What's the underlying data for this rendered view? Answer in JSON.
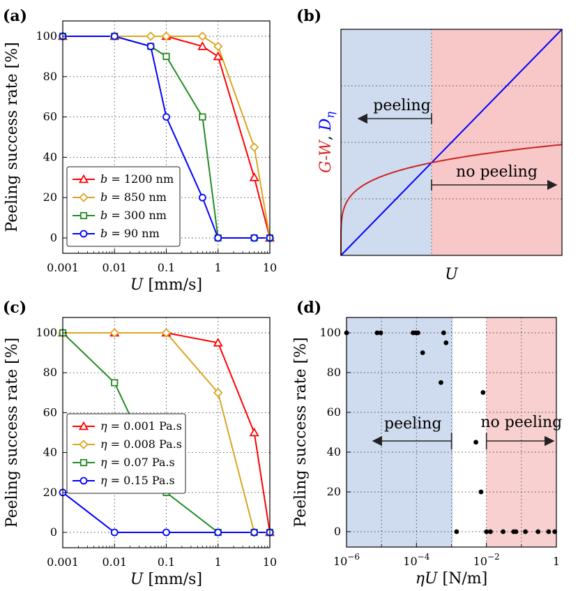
{
  "figure": {
    "panels": [
      {
        "id": "a",
        "label": "(a)",
        "chart_data": {
          "type": "line",
          "xscale": "log",
          "xlabel": "U [mm/s]",
          "ylabel": "Peeling success rate [%]",
          "xlim": [
            0.001,
            10
          ],
          "ylim": [
            0,
            100
          ],
          "xticks": [
            "0.001",
            "0.01",
            "0.1",
            "1",
            "10"
          ],
          "yticks": [
            "0",
            "20",
            "40",
            "60",
            "80",
            "100"
          ],
          "grid": true,
          "legend": "lower-left",
          "series": [
            {
              "name": "b = 1200 nm",
              "var": "b",
              "rest": " = 1200 nm",
              "color": "#ff0000",
              "marker": "triangle",
              "x": [
                0.001,
                0.01,
                0.1,
                0.5,
                1,
                5,
                10
              ],
              "y": [
                100,
                100,
                100,
                95,
                90,
                30,
                0
              ]
            },
            {
              "name": "b = 850 nm",
              "var": "b",
              "rest": " = 850 nm",
              "color": "#daa520",
              "marker": "diamond",
              "x": [
                0.001,
                0.01,
                0.05,
                0.1,
                0.5,
                1,
                5,
                10
              ],
              "y": [
                100,
                100,
                100,
                100,
                100,
                95,
                45,
                0
              ]
            },
            {
              "name": "b = 300 nm",
              "var": "b",
              "rest": " = 300 nm",
              "color": "#228b22",
              "marker": "square",
              "x": [
                0.001,
                0.01,
                0.05,
                0.1,
                0.5,
                1,
                5,
                10
              ],
              "y": [
                100,
                100,
                95,
                90,
                60,
                0,
                0,
                0
              ]
            },
            {
              "name": "b = 90 nm",
              "var": "b",
              "rest": " = 90 nm",
              "color": "#0000ff",
              "marker": "circle",
              "x": [
                0.001,
                0.01,
                0.05,
                0.1,
                0.5,
                1,
                5,
                10
              ],
              "y": [
                100,
                100,
                95,
                60,
                20,
                0,
                0,
                0
              ]
            }
          ]
        }
      },
      {
        "id": "b",
        "label": "(b)",
        "chart_data": {
          "type": "line",
          "xlabel": "U",
          "ylabel_parts": [
            {
              "text": "G-W",
              "color": "#dd2222"
            },
            {
              "text": ", ",
              "color": "#000000"
            },
            {
              "text": "D",
              "color": "#0000ff"
            },
            {
              "text": "η",
              "color": "#0000ff",
              "sub": true
            }
          ],
          "xlim": [
            0,
            1
          ],
          "ylim": [
            0,
            1
          ],
          "crossing_x": 0.41,
          "grid": true,
          "regions": [
            {
              "from": 0,
              "to": 0.41,
              "color": "#cfdcef"
            },
            {
              "from": 0.41,
              "to": 1,
              "color": "#f8c8c8"
            }
          ],
          "series": [
            {
              "name": "G-W",
              "color": "#cc2222",
              "shape": "sqrt"
            },
            {
              "name": "Dη",
              "color": "#0000ff",
              "shape": "linear"
            }
          ],
          "annotations": [
            {
              "text": "peeling",
              "direction": "left"
            },
            {
              "text": "no peeling",
              "direction": "right"
            }
          ]
        }
      },
      {
        "id": "c",
        "label": "(c)",
        "chart_data": {
          "type": "line",
          "xscale": "log",
          "xlabel": "U [mm/s]",
          "ylabel": "Peeling success rate [%]",
          "xlim": [
            0.001,
            10
          ],
          "ylim": [
            0,
            100
          ],
          "xticks": [
            "0.001",
            "0.01",
            "0.1",
            "1",
            "10"
          ],
          "yticks": [
            "0",
            "20",
            "40",
            "60",
            "80",
            "100"
          ],
          "grid": true,
          "legend": "center-left",
          "series": [
            {
              "name": "η = 0.001 Pa.s",
              "var": "η",
              "rest": " = 0.001 Pa.s",
              "color": "#ff0000",
              "marker": "triangle",
              "x": [
                0.001,
                0.01,
                0.1,
                1,
                5,
                10
              ],
              "y": [
                100,
                100,
                100,
                95,
                50,
                0
              ]
            },
            {
              "name": "η = 0.008 Pa.s",
              "var": "η",
              "rest": " = 0.008 Pa.s",
              "color": "#daa520",
              "marker": "diamond",
              "x": [
                0.001,
                0.01,
                0.1,
                1,
                5,
                10
              ],
              "y": [
                100,
                100,
                100,
                70,
                0,
                0
              ]
            },
            {
              "name": "η = 0.07 Pa.s",
              "var": "η",
              "rest": " = 0.07 Pa.s",
              "color": "#228b22",
              "marker": "square",
              "x": [
                0.001,
                0.01,
                0.1,
                1,
                5,
                10
              ],
              "y": [
                100,
                75,
                20,
                0,
                0,
                0
              ]
            },
            {
              "name": "η = 0.15 Pa.s",
              "var": "η",
              "rest": " = 0.15 Pa.s",
              "color": "#0000ff",
              "marker": "circle",
              "x": [
                0.001,
                0.01,
                0.1,
                1,
                5,
                10
              ],
              "y": [
                20,
                0,
                0,
                0,
                0,
                0
              ]
            }
          ]
        }
      },
      {
        "id": "d",
        "label": "(d)",
        "chart_data": {
          "type": "scatter",
          "xscale": "log",
          "xlabel": "ηU [N/m]",
          "ylabel": "Peeling success rate [%]",
          "xlim": [
            1e-06,
            1
          ],
          "ylim": [
            0,
            100
          ],
          "xticks": [
            {
              "base": "10",
              "exp": "−6"
            },
            {
              "base": "10",
              "exp": "−4"
            },
            {
              "base": "10",
              "exp": "−2"
            },
            {
              "base": "1",
              "exp": ""
            }
          ],
          "yticks": [
            "0",
            "20",
            "40",
            "60",
            "80",
            "100"
          ],
          "grid": true,
          "regions": [
            {
              "from": 1e-06,
              "to": 0.0011,
              "color": "#cfdcef"
            },
            {
              "from": 0.01,
              "to": 1,
              "color": "#f8d0d0"
            }
          ],
          "points": [
            {
              "x": 1e-06,
              "y": 100
            },
            {
              "x": 7.5e-06,
              "y": 100
            },
            {
              "x": 9.5e-06,
              "y": 100
            },
            {
              "x": 8e-05,
              "y": 100
            },
            {
              "x": 9.5e-05,
              "y": 100
            },
            {
              "x": 0.00011,
              "y": 100
            },
            {
              "x": 0.00015,
              "y": 90
            },
            {
              "x": 0.0006,
              "y": 100
            },
            {
              "x": 0.0007,
              "y": 95
            },
            {
              "x": 0.0005,
              "y": 75
            },
            {
              "x": 0.0014,
              "y": 0
            },
            {
              "x": 0.005,
              "y": 45
            },
            {
              "x": 0.007,
              "y": 20
            },
            {
              "x": 0.008,
              "y": 70
            },
            {
              "x": 0.01,
              "y": 0
            },
            {
              "x": 0.013,
              "y": 0
            },
            {
              "x": 0.03,
              "y": 0
            },
            {
              "x": 0.06,
              "y": 0
            },
            {
              "x": 0.07,
              "y": 0
            },
            {
              "x": 0.13,
              "y": 0
            },
            {
              "x": 0.3,
              "y": 0
            },
            {
              "x": 0.6,
              "y": 0
            },
            {
              "x": 0.9,
              "y": 0
            }
          ],
          "annotations": [
            {
              "text": "peeling",
              "direction": "left"
            },
            {
              "text": "no peeling",
              "direction": "right"
            }
          ]
        }
      }
    ]
  }
}
